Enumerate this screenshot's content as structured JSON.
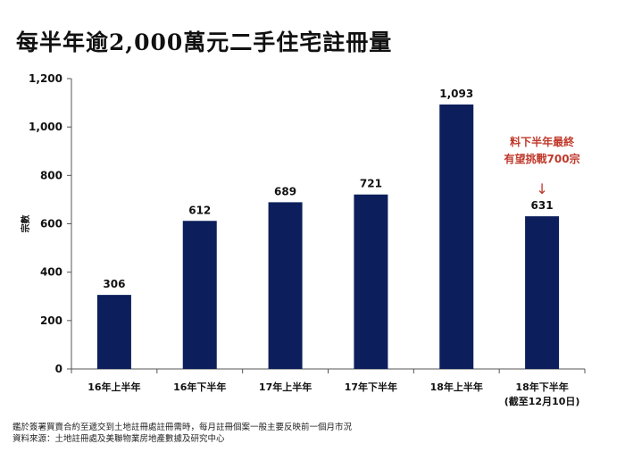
{
  "title": "每半年逾2,000萬元二手住宅註冊量",
  "chart_data": {
    "type": "bar",
    "ylabel": "宗數",
    "ylim": [
      0,
      1200
    ],
    "yticks": [
      0,
      200,
      400,
      600,
      800,
      1000,
      1200
    ],
    "ytick_labels": [
      "0",
      "200",
      "400",
      "600",
      "800",
      "1,000",
      "1,200"
    ],
    "categories": [
      [
        "16年上半年"
      ],
      [
        "16年下半年"
      ],
      [
        "17年上半年"
      ],
      [
        "17年下半年"
      ],
      [
        "18年上半年"
      ],
      [
        "18年下半年",
        "(截至12月10日)"
      ]
    ],
    "values": [
      306,
      612,
      689,
      721,
      1093,
      631
    ],
    "value_labels": [
      "306",
      "612",
      "689",
      "721",
      "1,093",
      "631"
    ],
    "bar_color": "#0c1f5c",
    "grid": false,
    "annotation": {
      "lines": [
        "料下半年最終",
        "有望挑戰700宗"
      ],
      "arrow": "↓",
      "target_index": 5,
      "color": "#c0392b"
    }
  },
  "footnotes": [
    "鑑於簽署買賣合約至遞交到土地註冊處註冊需時，每月註冊個案一般主要反映前一個月市況",
    "資料來源：土地註冊處及美聯物業房地產數據及研究中心"
  ]
}
